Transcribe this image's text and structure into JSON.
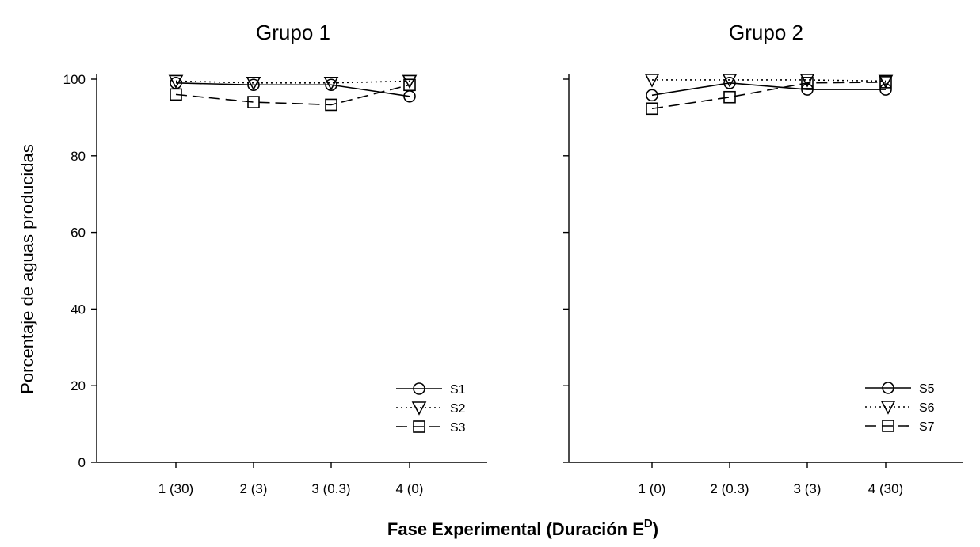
{
  "chart_data": [
    {
      "type": "line",
      "title": "Grupo 1",
      "categories": [
        "1 (30)",
        "2 (3)",
        "3 (0.3)",
        "4 (0)"
      ],
      "ylim": [
        0,
        100
      ],
      "yticks": [
        0,
        20,
        40,
        60,
        80,
        100
      ],
      "grid": false,
      "legend_position": "bottom-right",
      "series": [
        {
          "name": "S1",
          "marker": "circle",
          "line": "solid",
          "values": [
            99.0,
            98.5,
            98.5,
            95.5
          ]
        },
        {
          "name": "S2",
          "marker": "triangle-down",
          "line": "dotted",
          "values": [
            99.5,
            99.0,
            99.0,
            99.5
          ]
        },
        {
          "name": "S3",
          "marker": "square",
          "line": "dashed",
          "values": [
            96.0,
            94.0,
            93.3,
            98.5
          ]
        }
      ]
    },
    {
      "type": "line",
      "title": "Grupo 2",
      "categories": [
        "1 (0)",
        "2 (0.3)",
        "3 (3)",
        "4 (30)"
      ],
      "ylim": [
        0,
        100
      ],
      "yticks": [
        0,
        20,
        40,
        60,
        80,
        100
      ],
      "grid": false,
      "legend_position": "bottom-right",
      "series": [
        {
          "name": "S5",
          "marker": "circle",
          "line": "solid",
          "values": [
            95.8,
            99.0,
            97.3,
            97.3
          ]
        },
        {
          "name": "S6",
          "marker": "triangle-down",
          "line": "dotted",
          "values": [
            99.8,
            99.8,
            99.8,
            99.5
          ]
        },
        {
          "name": "S7",
          "marker": "square",
          "line": "dashed",
          "values": [
            92.3,
            95.3,
            99.0,
            99.2
          ]
        }
      ]
    }
  ],
  "ylabel": "Porcentaje de aguas producidas",
  "xlabel": "Fase Experimental (Duración E",
  "xlabel_superscript": "D",
  "xlabel_close": ")"
}
